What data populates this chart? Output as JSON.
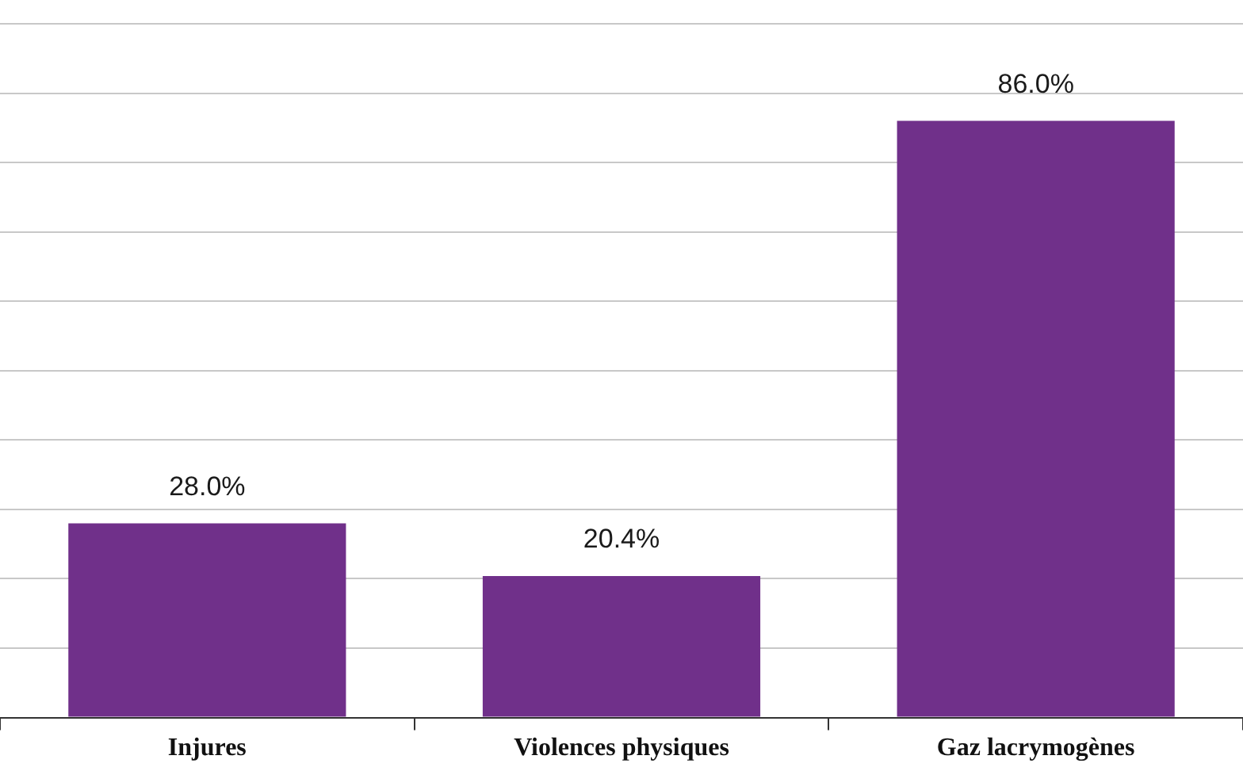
{
  "chart_data": {
    "type": "bar",
    "categories": [
      "Injures",
      "Violences physiques",
      "Gaz lacrymogènes"
    ],
    "values": [
      28,
      20.4,
      86
    ],
    "value_labels": [
      "28.0%",
      "20.4%",
      "86.0%"
    ],
    "color": "#70308a",
    "ylim": [
      0,
      100
    ],
    "yticks": [
      {
        "value": 0,
        "label": null
      },
      {
        "value": 10,
        "label": null
      },
      {
        "value": 20,
        "label": null
      },
      {
        "value": 30,
        "label": null
      },
      {
        "value": 40,
        "label": null
      },
      {
        "value": 50,
        "label": null
      },
      {
        "value": 60,
        "label": null
      },
      {
        "value": 70,
        "label": null
      },
      {
        "value": 80,
        "label": null
      },
      {
        "value": 90,
        "label": null
      },
      {
        "value": 100,
        "label": null
      }
    ],
    "grid": "y",
    "tick_labels": "x",
    "legend": false
  }
}
